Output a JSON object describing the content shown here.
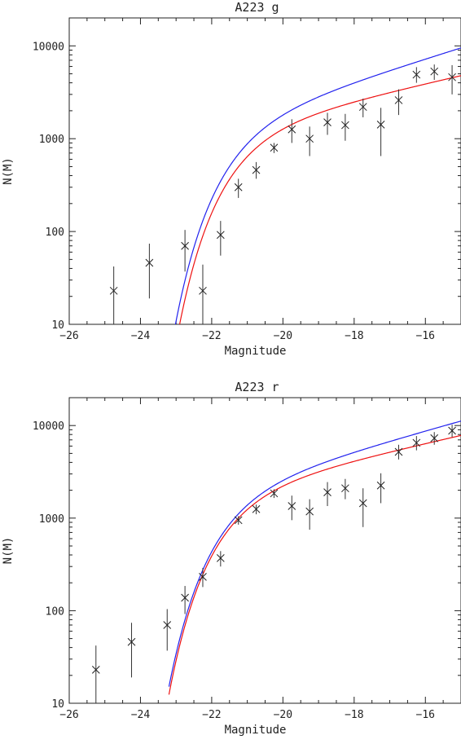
{
  "chart_data": [
    {
      "type": "scatter",
      "title": "A223 g",
      "xlabel": "Magnitude",
      "ylabel": "N(M)",
      "xlim": [
        -26,
        -15
      ],
      "ylim": [
        10,
        20000
      ],
      "yscale": "log",
      "x_ticks": [
        -26,
        -24,
        -22,
        -20,
        -18,
        -16
      ],
      "y_ticks": [
        10,
        100,
        1000,
        10000
      ],
      "points": [
        {
          "x": -24.75,
          "y": 23,
          "lo": 10,
          "hi": 42
        },
        {
          "x": -23.75,
          "y": 46,
          "lo": 19,
          "hi": 74
        },
        {
          "x": -22.75,
          "y": 70,
          "lo": 37,
          "hi": 104
        },
        {
          "x": -22.25,
          "y": 23,
          "lo": 10,
          "hi": 44
        },
        {
          "x": -21.75,
          "y": 92,
          "lo": 55,
          "hi": 130
        },
        {
          "x": -21.25,
          "y": 300,
          "lo": 230,
          "hi": 370
        },
        {
          "x": -20.75,
          "y": 460,
          "lo": 370,
          "hi": 560
        },
        {
          "x": -20.25,
          "y": 800,
          "lo": 700,
          "hi": 900
        },
        {
          "x": -19.75,
          "y": 1260,
          "lo": 900,
          "hi": 1620
        },
        {
          "x": -19.25,
          "y": 1000,
          "lo": 650,
          "hi": 1350
        },
        {
          "x": -18.75,
          "y": 1500,
          "lo": 1100,
          "hi": 1900
        },
        {
          "x": -18.25,
          "y": 1400,
          "lo": 950,
          "hi": 1850
        },
        {
          "x": -17.75,
          "y": 2200,
          "lo": 1700,
          "hi": 2700
        },
        {
          "x": -17.25,
          "y": 1420,
          "lo": 650,
          "hi": 2150
        },
        {
          "x": -16.75,
          "y": 2600,
          "lo": 1800,
          "hi": 3400
        },
        {
          "x": -16.25,
          "y": 4900,
          "lo": 4000,
          "hi": 5900
        },
        {
          "x": -15.75,
          "y": 5300,
          "lo": 4300,
          "hi": 6300
        },
        {
          "x": -15.25,
          "y": 4600,
          "lo": 3000,
          "hi": 6200
        }
      ],
      "curves": [
        {
          "color": "#2222ee",
          "phi": 1650,
          "mstar": -21.35,
          "alpha": -1.3
        },
        {
          "color": "#ee1111",
          "phi": 1350,
          "mstar": -21.25,
          "alpha": -1.22
        }
      ]
    },
    {
      "type": "scatter",
      "title": "A223 r",
      "xlabel": "Magnitude",
      "ylabel": "N(M)",
      "xlim": [
        -26,
        -15
      ],
      "ylim": [
        10,
        20000
      ],
      "yscale": "log",
      "x_ticks": [
        -26,
        -24,
        -22,
        -20,
        -18,
        -16
      ],
      "y_ticks": [
        10,
        100,
        1000,
        10000
      ],
      "points": [
        {
          "x": -25.25,
          "y": 23,
          "lo": 10,
          "hi": 42
        },
        {
          "x": -24.25,
          "y": 46,
          "lo": 19,
          "hi": 74
        },
        {
          "x": -23.25,
          "y": 70,
          "lo": 37,
          "hi": 104
        },
        {
          "x": -22.75,
          "y": 138,
          "lo": 92,
          "hi": 185
        },
        {
          "x": -22.25,
          "y": 232,
          "lo": 180,
          "hi": 290
        },
        {
          "x": -21.75,
          "y": 370,
          "lo": 300,
          "hi": 440
        },
        {
          "x": -21.25,
          "y": 950,
          "lo": 850,
          "hi": 1050
        },
        {
          "x": -20.75,
          "y": 1250,
          "lo": 1100,
          "hi": 1400
        },
        {
          "x": -20.25,
          "y": 1850,
          "lo": 1650,
          "hi": 2050
        },
        {
          "x": -19.75,
          "y": 1350,
          "lo": 950,
          "hi": 1750
        },
        {
          "x": -19.25,
          "y": 1180,
          "lo": 750,
          "hi": 1600
        },
        {
          "x": -18.75,
          "y": 1900,
          "lo": 1350,
          "hi": 2450
        },
        {
          "x": -18.25,
          "y": 2100,
          "lo": 1600,
          "hi": 2650
        },
        {
          "x": -17.75,
          "y": 1450,
          "lo": 800,
          "hi": 2100
        },
        {
          "x": -17.25,
          "y": 2250,
          "lo": 1450,
          "hi": 3050
        },
        {
          "x": -16.75,
          "y": 5200,
          "lo": 4300,
          "hi": 6200
        },
        {
          "x": -16.25,
          "y": 6500,
          "lo": 5400,
          "hi": 7700
        },
        {
          "x": -15.75,
          "y": 7300,
          "lo": 6200,
          "hi": 8500
        },
        {
          "x": -15.25,
          "y": 8800,
          "lo": 7500,
          "hi": 10200
        }
      ],
      "curves": [
        {
          "color": "#2222ee",
          "phi": 2200,
          "mstar": -21.55,
          "alpha": -1.27
        },
        {
          "color": "#ee1111",
          "phi": 2100,
          "mstar": -21.5,
          "alpha": -1.22
        }
      ]
    }
  ]
}
